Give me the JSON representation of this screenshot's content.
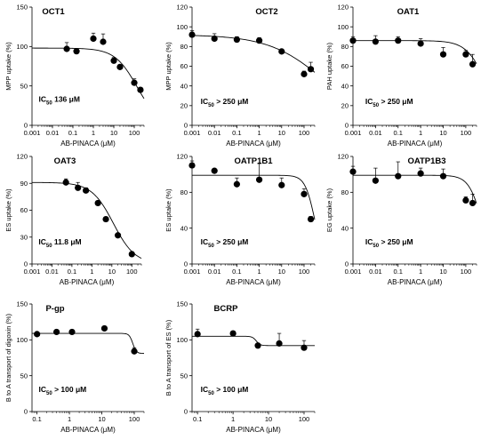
{
  "chart_data": [
    {
      "type": "scatter",
      "title": "OCT1",
      "ylabel": "MPP uptake (%)",
      "xlabel": "AB-PINACA (μM)",
      "xscale": "log",
      "xlim": [
        0.001,
        300
      ],
      "ylim": [
        0,
        150
      ],
      "xticks": [
        "0.001",
        "0.01",
        "0.1",
        "1",
        "10",
        "100"
      ],
      "yticks": [
        "0",
        "50",
        "100",
        "150"
      ],
      "annotation_main": "IC",
      "annotation_sub": "50",
      "annotation_rest": " 136 μM",
      "points": [
        {
          "x": 0.05,
          "y": 97,
          "err": 8
        },
        {
          "x": 0.15,
          "y": 94,
          "err": 3
        },
        {
          "x": 1,
          "y": 110,
          "err": 7
        },
        {
          "x": 3,
          "y": 106,
          "err": 10
        },
        {
          "x": 10,
          "y": 82,
          "err": 4
        },
        {
          "x": 20,
          "y": 74,
          "err": 3
        },
        {
          "x": 100,
          "y": 54,
          "err": 5
        },
        {
          "x": 200,
          "y": 45,
          "err": 3
        }
      ],
      "fit": {
        "top": 98,
        "bottom": 0,
        "ic50": 136,
        "hill": 0.8
      }
    },
    {
      "type": "scatter",
      "title": "OCT2",
      "ylabel": "MPP uptake (%)",
      "xlabel": "AB-PINACA (μM)",
      "xscale": "log",
      "xlim": [
        0.001,
        300
      ],
      "ylim": [
        0,
        120
      ],
      "xticks": [
        "0.001",
        "0.01",
        "0.1",
        "1",
        "10",
        "100"
      ],
      "yticks": [
        "0",
        "20",
        "40",
        "60",
        "80",
        "100",
        "120"
      ],
      "annotation_main": "IC",
      "annotation_sub": "50",
      "annotation_rest": " > 250 μM",
      "points": [
        {
          "x": 0.001,
          "y": 92,
          "err": 4
        },
        {
          "x": 0.01,
          "y": 88,
          "err": 5
        },
        {
          "x": 0.1,
          "y": 87,
          "err": 3
        },
        {
          "x": 1,
          "y": 86,
          "err": 3
        },
        {
          "x": 10,
          "y": 75,
          "err": 2
        },
        {
          "x": 100,
          "y": 52,
          "err": 3
        },
        {
          "x": 200,
          "y": 57,
          "err": 7
        }
      ],
      "fit": {
        "top": 92,
        "bottom": 0,
        "ic50": 800,
        "hill": 0.35
      }
    },
    {
      "type": "scatter",
      "title": "OAT1",
      "ylabel": "PAH uptake (%)",
      "xlabel": "AB-PINACA (μM)",
      "xscale": "log",
      "xlim": [
        0.001,
        300
      ],
      "ylim": [
        0,
        120
      ],
      "xticks": [
        "0.001",
        "0.01",
        "0.1",
        "1",
        "10",
        "100"
      ],
      "yticks": [
        "0",
        "20",
        "40",
        "60",
        "80",
        "100",
        "120"
      ],
      "annotation_main": "IC",
      "annotation_sub": "50",
      "annotation_rest": " > 250 μM",
      "points": [
        {
          "x": 0.001,
          "y": 86,
          "err": 4
        },
        {
          "x": 0.01,
          "y": 85,
          "err": 6
        },
        {
          "x": 0.1,
          "y": 86,
          "err": 4
        },
        {
          "x": 1,
          "y": 83,
          "err": 5
        },
        {
          "x": 10,
          "y": 72,
          "err": 7
        },
        {
          "x": 100,
          "y": 72,
          "err": 4
        },
        {
          "x": 200,
          "y": 62,
          "err": 10
        }
      ],
      "fit": {
        "top": 86,
        "bottom": 0,
        "ic50": 800,
        "hill": 1
      }
    },
    {
      "type": "scatter",
      "title": "OAT3",
      "ylabel": "ES uptake (%)",
      "xlabel": "AB-PINACA (μM)",
      "xscale": "log",
      "xlim": [
        0.001,
        300
      ],
      "ylim": [
        0,
        120
      ],
      "xticks": [
        "0.001",
        "0.01",
        "0.1",
        "1",
        "10",
        "100"
      ],
      "yticks": [
        "0",
        "30",
        "60",
        "90",
        "120"
      ],
      "annotation_main": "IC",
      "annotation_sub": "50",
      "annotation_rest": " 11.8 μM",
      "points": [
        {
          "x": 0.05,
          "y": 91,
          "err": 4
        },
        {
          "x": 0.2,
          "y": 85,
          "err": 6
        },
        {
          "x": 0.5,
          "y": 82,
          "err": 3
        },
        {
          "x": 2,
          "y": 68,
          "err": 2
        },
        {
          "x": 5,
          "y": 50,
          "err": 2
        },
        {
          "x": 20,
          "y": 32,
          "err": 2
        },
        {
          "x": 100,
          "y": 11,
          "err": 2
        }
      ],
      "fit": {
        "top": 91,
        "bottom": 0,
        "ic50": 11.8,
        "hill": 0.8
      }
    },
    {
      "type": "scatter",
      "title": "OATP1B1",
      "ylabel": "ES uptake (%)",
      "xlabel": "AB-PINACA (μM)",
      "xscale": "log",
      "xlim": [
        0.001,
        300
      ],
      "ylim": [
        0,
        120
      ],
      "xticks": [
        "0.001",
        "0.01",
        "0.1",
        "1",
        "10",
        "100"
      ],
      "yticks": [
        "0",
        "40",
        "80",
        "120"
      ],
      "annotation_main": "IC",
      "annotation_sub": "50",
      "annotation_rest": " > 250 μM",
      "points": [
        {
          "x": 0.001,
          "y": 110,
          "err": 5
        },
        {
          "x": 0.01,
          "y": 104,
          "err": 2
        },
        {
          "x": 0.1,
          "y": 89,
          "err": 7
        },
        {
          "x": 1,
          "y": 94,
          "err": 18
        },
        {
          "x": 10,
          "y": 88,
          "err": 8
        },
        {
          "x": 100,
          "y": 78,
          "err": 6
        },
        {
          "x": 200,
          "y": 50,
          "err": 3
        }
      ],
      "fit": {
        "top": 99,
        "bottom": 0,
        "ic50": 300,
        "hill": 2
      }
    },
    {
      "type": "scatter",
      "title": "OATP1B3",
      "ylabel": "EG uptake (%)",
      "xlabel": "AB-PINACA (μM)",
      "xscale": "log",
      "xlim": [
        0.001,
        300
      ],
      "ylim": [
        0,
        120
      ],
      "xticks": [
        "0.001",
        "0.01",
        "0.1",
        "1",
        "10",
        "100"
      ],
      "yticks": [
        "0",
        "40",
        "80",
        "120"
      ],
      "annotation_main": "IC",
      "annotation_sub": "50",
      "annotation_rest": " > 250 μM",
      "points": [
        {
          "x": 0.001,
          "y": 103,
          "err": 6
        },
        {
          "x": 0.01,
          "y": 93,
          "err": 14
        },
        {
          "x": 0.1,
          "y": 98,
          "err": 16
        },
        {
          "x": 1,
          "y": 101,
          "err": 6
        },
        {
          "x": 10,
          "y": 98,
          "err": 8
        },
        {
          "x": 100,
          "y": 71,
          "err": 4
        },
        {
          "x": 200,
          "y": 68,
          "err": 10
        }
      ],
      "fit": {
        "top": 99,
        "bottom": 0,
        "ic50": 500,
        "hill": 1.5
      }
    },
    {
      "type": "scatter",
      "title": "P-gp",
      "ylabel": "B to A transport of digoxin (%)",
      "xlabel": "AB-PINACA (μM)",
      "xscale": "log",
      "xlim": [
        0.07,
        200
      ],
      "ylim": [
        0,
        150
      ],
      "xticks": [
        "0.1",
        "1",
        "10",
        "100"
      ],
      "yticks": [
        "0",
        "50",
        "100",
        "150"
      ],
      "annotation_main": "IC",
      "annotation_sub": "50",
      "annotation_rest": " > 100 μM",
      "points": [
        {
          "x": 0.1,
          "y": 108,
          "err": 3
        },
        {
          "x": 0.4,
          "y": 111,
          "err": 2
        },
        {
          "x": 1.2,
          "y": 111,
          "err": 2
        },
        {
          "x": 12,
          "y": 116,
          "err": 3
        },
        {
          "x": 100,
          "y": 84,
          "err": 5
        }
      ],
      "fit": {
        "top": 109,
        "bottom": 81,
        "ic50": 90,
        "hill": 8
      }
    },
    {
      "type": "scatter",
      "title": "BCRP",
      "ylabel": "B to A transport of ES (%)",
      "xlabel": "AB-PINACA (μM)",
      "xscale": "log",
      "xlim": [
        0.07,
        200
      ],
      "ylim": [
        0,
        150
      ],
      "xticks": [
        "0.1",
        "1",
        "10",
        "100"
      ],
      "yticks": [
        "0",
        "50",
        "100",
        "150"
      ],
      "annotation_main": "IC",
      "annotation_sub": "50",
      "annotation_rest": " > 100 μM",
      "points": [
        {
          "x": 0.1,
          "y": 108,
          "err": 7
        },
        {
          "x": 1,
          "y": 109,
          "err": 3
        },
        {
          "x": 5,
          "y": 92,
          "err": 3
        },
        {
          "x": 20,
          "y": 95,
          "err": 14
        },
        {
          "x": 100,
          "y": 89,
          "err": 10
        }
      ],
      "fit": {
        "top": 105,
        "bottom": 92,
        "ic50": 4.5,
        "hill": 8
      }
    }
  ]
}
